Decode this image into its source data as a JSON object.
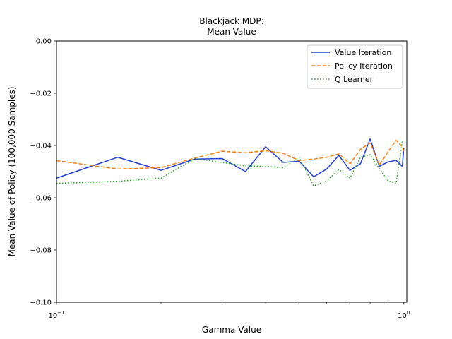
{
  "chart_data": {
    "type": "line",
    "title_lines": [
      "Blackjack MDP:",
      "Mean Value"
    ],
    "xlabel": "Gamma Value",
    "ylabel": "Mean Value of Policy (100,000 Samples)",
    "xscale": "log",
    "xlim": [
      0.1,
      1.02
    ],
    "ylim": [
      -0.1,
      0.0
    ],
    "yticks": [
      0.0,
      -0.02,
      -0.04,
      -0.06,
      -0.08,
      -0.1
    ],
    "ytick_labels": [
      "0.00",
      "−0.02",
      "−0.04",
      "−0.06",
      "−0.08",
      "−0.10"
    ],
    "xtick_major": [
      {
        "value": 0.1,
        "base": "10",
        "exp": "−1"
      },
      {
        "value": 1.0,
        "base": "10",
        "exp": "0"
      }
    ],
    "xtick_minor": [
      0.2,
      0.3,
      0.4,
      0.5,
      0.6,
      0.7,
      0.8,
      0.9
    ],
    "legend_position": "top-right",
    "grid": false,
    "series": [
      {
        "name": "Value Iteration",
        "color": "#1f3fdb",
        "dash": "solid",
        "x": [
          0.1,
          0.15,
          0.2,
          0.25,
          0.3,
          0.35,
          0.4,
          0.45,
          0.5,
          0.55,
          0.6,
          0.65,
          0.7,
          0.75,
          0.8,
          0.85,
          0.9,
          0.95,
          0.99,
          1.0
        ],
        "y": [
          -0.0525,
          -0.0445,
          -0.0495,
          -0.0452,
          -0.045,
          -0.05,
          -0.0405,
          -0.0465,
          -0.046,
          -0.052,
          -0.049,
          -0.0438,
          -0.0495,
          -0.047,
          -0.0375,
          -0.048,
          -0.0463,
          -0.0457,
          -0.048,
          -0.041
        ]
      },
      {
        "name": "Policy Iteration",
        "color": "#ff7f0e",
        "dash": "dashed",
        "x": [
          0.1,
          0.15,
          0.2,
          0.25,
          0.3,
          0.35,
          0.4,
          0.45,
          0.5,
          0.55,
          0.6,
          0.65,
          0.7,
          0.75,
          0.8,
          0.85,
          0.9,
          0.95,
          0.99,
          1.0
        ],
        "y": [
          -0.0458,
          -0.049,
          -0.0485,
          -0.0448,
          -0.0422,
          -0.0428,
          -0.042,
          -0.043,
          -0.0458,
          -0.0452,
          -0.0445,
          -0.0432,
          -0.047,
          -0.0415,
          -0.039,
          -0.0475,
          -0.0425,
          -0.038,
          -0.0405,
          -0.0425
        ]
      },
      {
        "name": "Q Learner",
        "color": "#2ca02c",
        "dash": "dotted",
        "x": [
          0.1,
          0.15,
          0.2,
          0.25,
          0.3,
          0.35,
          0.4,
          0.45,
          0.5,
          0.55,
          0.6,
          0.65,
          0.7,
          0.75,
          0.8,
          0.85,
          0.9,
          0.95,
          0.99,
          1.0
        ],
        "y": [
          -0.0545,
          -0.0537,
          -0.0525,
          -0.045,
          -0.0465,
          -0.0478,
          -0.048,
          -0.0485,
          -0.0445,
          -0.0555,
          -0.0535,
          -0.0492,
          -0.0525,
          -0.0445,
          -0.0435,
          -0.0488,
          -0.0535,
          -0.0545,
          -0.0385,
          -0.0385
        ]
      }
    ]
  }
}
